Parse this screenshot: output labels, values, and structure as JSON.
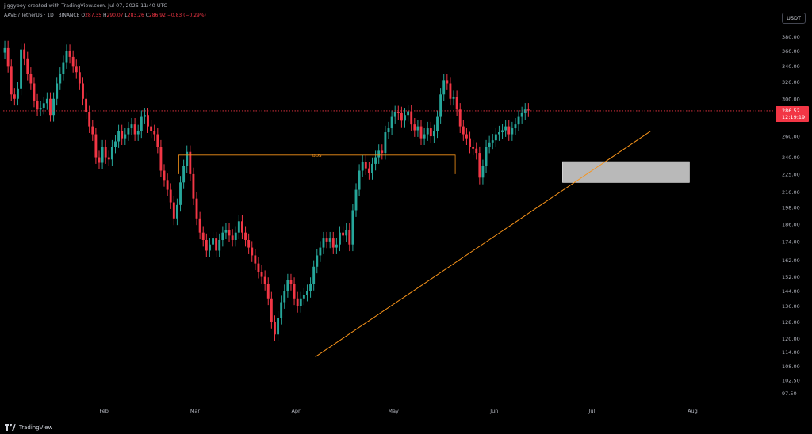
{
  "header": {
    "author_line": "jiggyboy created with TradingView.com, Jul 07, 2025 11:40 UTC"
  },
  "symbol": {
    "pair": "AAVE / TetherUS · 1D · BINANCE",
    "ohlc_prefix_o": "O",
    "open": "287.35",
    "ohlc_prefix_h": "H",
    "high": "290.07",
    "ohlc_prefix_l": "L",
    "low": "283.26",
    "ohlc_prefix_c": "C",
    "close": "286.92",
    "change": "−0.83 (−0.29%)"
  },
  "currency_button": "USDT",
  "footer": {
    "brand": "TradingView"
  },
  "colors": {
    "up": "#26a69a",
    "down": "#f23645",
    "trend": "#f7931a",
    "bos": "#f7931a",
    "price_line": "#f23645",
    "zone_fill": "#d9d9d9"
  },
  "chart_data": {
    "type": "candlestick",
    "symbol": "AAVE/USDT",
    "timeframe": "1D",
    "y_scale": "log",
    "ylim": [
      95,
      390
    ],
    "y_ticks": [
      "380.00",
      "360.00",
      "340.00",
      "320.00",
      "300.00",
      "280.00",
      "260.00",
      "240.00",
      "225.00",
      "210.00",
      "198.00",
      "186.00",
      "174.00",
      "162.00",
      "152.00",
      "144.00",
      "136.00",
      "128.00",
      "120.00",
      "114.00",
      "108.00",
      "102.50",
      "97.50"
    ],
    "x_ticks": [
      "Feb",
      "Mar",
      "Apr",
      "May",
      "Jun",
      "Jul",
      "Aug"
    ],
    "xlim": [
      "2025-01-01",
      "2025-08-26"
    ],
    "last_price": "286.52",
    "countdown": "12:19:19",
    "closes": [
      365,
      340,
      305,
      300,
      312,
      362,
      350,
      330,
      318,
      298,
      288,
      290,
      295,
      300,
      282,
      300,
      318,
      330,
      345,
      360,
      352,
      340,
      332,
      318,
      300,
      285,
      270,
      262,
      240,
      235,
      250,
      240,
      238,
      250,
      255,
      265,
      258,
      262,
      268,
      272,
      262,
      265,
      280,
      282,
      270,
      265,
      262,
      250,
      228,
      220,
      212,
      202,
      190,
      200,
      218,
      232,
      245,
      225,
      205,
      190,
      180,
      175,
      168,
      172,
      176,
      168,
      175,
      180,
      182,
      178,
      175,
      180,
      188,
      180,
      175,
      170,
      165,
      160,
      155,
      152,
      148,
      140,
      128,
      122,
      130,
      138,
      144,
      150,
      148,
      140,
      136,
      140,
      142,
      144,
      148,
      158,
      165,
      170,
      176,
      174,
      176,
      170,
      172,
      180,
      178,
      182,
      172,
      196,
      212,
      228,
      236,
      230,
      226,
      234,
      240,
      246,
      244,
      264,
      268,
      280,
      285,
      284,
      276,
      282,
      286,
      272,
      266,
      270,
      258,
      262,
      268,
      260,
      265,
      280,
      305,
      322,
      318,
      300,
      302,
      288,
      270,
      262,
      258,
      250,
      248,
      244,
      222,
      232,
      250,
      254,
      256,
      262,
      264,
      266,
      270,
      262,
      268,
      272,
      280,
      284,
      288,
      287
    ]
  },
  "annotations": {
    "bos_label": "BOS",
    "bos_level": 242,
    "bos_from": "2025-02-24",
    "bos_to": "2025-05-20",
    "trendline": {
      "from": [
        "2025-04-07",
        112
      ],
      "to": [
        "2025-07-19",
        265
      ]
    },
    "demand_zone": {
      "from": "2025-06-22",
      "to": "2025-07-31",
      "top": 236,
      "bottom": 218
    }
  }
}
